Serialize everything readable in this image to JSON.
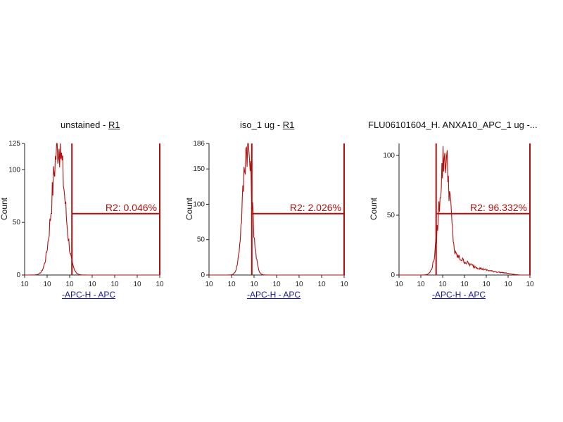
{
  "colors": {
    "histogram": "#b01010",
    "gate": "#b01010",
    "axis": "#222222"
  },
  "chart_data": [
    {
      "type": "histogram",
      "title": "unstained - ",
      "title_gate": "R1",
      "xlabel": "-APC-H - APC",
      "ylabel": "Count",
      "x_tick_labels": [
        "10",
        "10",
        "10",
        "10",
        "10",
        "10",
        "10"
      ],
      "y_ticks": [
        0,
        50,
        100,
        125
      ],
      "ylim": [
        0,
        125
      ],
      "gate": {
        "name": "R2",
        "label": "R2: 0.046%",
        "x_start_decade": 2.1,
        "x_end_decade": 6.0,
        "level": 0.48
      },
      "peak": {
        "center_decade": 1.5,
        "height": 125,
        "spread": 0.28
      }
    },
    {
      "type": "histogram",
      "title": "iso_1 ug - ",
      "title_gate": "R1",
      "xlabel": "-APC-H - APC",
      "ylabel": "Count",
      "x_tick_labels": [
        "10",
        "10",
        "10",
        "10",
        "10",
        "10",
        "10"
      ],
      "y_ticks": [
        0,
        50,
        100,
        150,
        186
      ],
      "ylim": [
        0,
        186
      ],
      "gate": {
        "name": "R2",
        "label": "R2: 2.026%",
        "x_start_decade": 1.9,
        "x_end_decade": 6.0,
        "level": 0.48
      },
      "peak": {
        "center_decade": 1.7,
        "height": 186,
        "spread": 0.2
      }
    },
    {
      "type": "histogram",
      "title": "FLU06101604_H. ANXA10_APC_1 ug -...",
      "title_gate": "",
      "xlabel": "-APC-H - APC",
      "ylabel": "Count",
      "x_tick_labels": [
        "10",
        "10",
        "10",
        "10",
        "10",
        "10",
        "10"
      ],
      "y_ticks": [
        0,
        50,
        100
      ],
      "ylim": [
        0,
        110
      ],
      "gate": {
        "name": "R2",
        "label": "R2: 96.332%",
        "x_start_decade": 1.7,
        "x_end_decade": 6.0,
        "level": 0.48
      },
      "peak": {
        "center_decade": 2.1,
        "height": 100,
        "spread": 0.25,
        "tail": true
      }
    }
  ]
}
